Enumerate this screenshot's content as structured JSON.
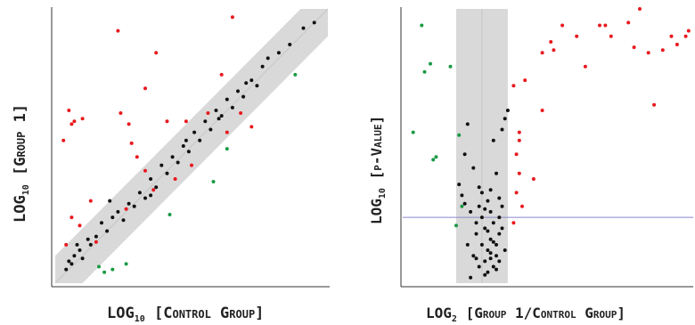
{
  "colors": {
    "red": "#e8191e",
    "green": "#1a9a45",
    "black": "#111111",
    "band": "#d9d9d9",
    "hline": "#8888cc"
  },
  "chart_data": [
    {
      "type": "scatter",
      "xlabel_main": "LOG",
      "xlabel_sub": "10",
      "xlabel_rest": " [Control Group]",
      "ylabel_main": "LOG",
      "ylabel_sub": "10",
      "ylabel_rest": " [Group 1]",
      "xlim": [
        0,
        1
      ],
      "ylim": [
        0,
        1
      ],
      "band_halfwidth": 0.1,
      "series": [
        {
          "color_key": "black",
          "points": [
            [
              0.04,
              0.05
            ],
            [
              0.05,
              0.08
            ],
            [
              0.06,
              0.07
            ],
            [
              0.07,
              0.1
            ],
            [
              0.09,
              0.12
            ],
            [
              0.1,
              0.09
            ],
            [
              0.12,
              0.16
            ],
            [
              0.13,
              0.14
            ],
            [
              0.15,
              0.17
            ],
            [
              0.17,
              0.22
            ],
            [
              0.19,
              0.19
            ],
            [
              0.21,
              0.24
            ],
            [
              0.23,
              0.26
            ],
            [
              0.25,
              0.23
            ],
            [
              0.27,
              0.29
            ],
            [
              0.29,
              0.28
            ],
            [
              0.31,
              0.33
            ],
            [
              0.33,
              0.31
            ],
            [
              0.35,
              0.38
            ],
            [
              0.37,
              0.35
            ],
            [
              0.39,
              0.43
            ],
            [
              0.41,
              0.4
            ],
            [
              0.43,
              0.46
            ],
            [
              0.45,
              0.44
            ],
            [
              0.47,
              0.5
            ],
            [
              0.49,
              0.48
            ],
            [
              0.51,
              0.55
            ],
            [
              0.53,
              0.52
            ],
            [
              0.55,
              0.59
            ],
            [
              0.57,
              0.56
            ],
            [
              0.59,
              0.63
            ],
            [
              0.61,
              0.61
            ],
            [
              0.63,
              0.67
            ],
            [
              0.65,
              0.64
            ],
            [
              0.67,
              0.7
            ],
            [
              0.69,
              0.68
            ],
            [
              0.72,
              0.74
            ],
            [
              0.74,
              0.72
            ],
            [
              0.78,
              0.82
            ],
            [
              0.82,
              0.84
            ],
            [
              0.86,
              0.87
            ],
            [
              0.91,
              0.93
            ],
            [
              0.95,
              0.95
            ],
            [
              0.08,
              0.14
            ],
            [
              0.2,
              0.3
            ],
            [
              0.35,
              0.32
            ],
            [
              0.48,
              0.52
            ],
            [
              0.6,
              0.6
            ],
            [
              0.7,
              0.73
            ],
            [
              0.76,
              0.79
            ]
          ]
        },
        {
          "color_key": "red",
          "points": [
            [
              0.03,
              0.52
            ],
            [
              0.05,
              0.63
            ],
            [
              0.06,
              0.58
            ],
            [
              0.07,
              0.59
            ],
            [
              0.1,
              0.6
            ],
            [
              0.06,
              0.24
            ],
            [
              0.09,
              0.21
            ],
            [
              0.04,
              0.14
            ],
            [
              0.13,
              0.3
            ],
            [
              0.15,
              0.15
            ],
            [
              0.23,
              0.92
            ],
            [
              0.24,
              0.62
            ],
            [
              0.27,
              0.58
            ],
            [
              0.28,
              0.51
            ],
            [
              0.3,
              0.46
            ],
            [
              0.33,
              0.41
            ],
            [
              0.33,
              0.71
            ],
            [
              0.37,
              0.84
            ],
            [
              0.41,
              0.59
            ],
            [
              0.48,
              0.59
            ],
            [
              0.56,
              0.62
            ],
            [
              0.61,
              0.76
            ],
            [
              0.65,
              0.97
            ],
            [
              0.68,
              0.62
            ],
            [
              0.72,
              0.57
            ],
            [
              0.63,
              0.55
            ],
            [
              0.5,
              0.43
            ],
            [
              0.44,
              0.38
            ],
            [
              0.36,
              0.34
            ],
            [
              0.26,
              0.27
            ]
          ]
        },
        {
          "color_key": "green",
          "points": [
            [
              0.16,
              0.06
            ],
            [
              0.21,
              0.05
            ],
            [
              0.26,
              0.07
            ],
            [
              0.42,
              0.25
            ],
            [
              0.58,
              0.37
            ],
            [
              0.63,
              0.49
            ],
            [
              0.88,
              0.76
            ],
            [
              0.18,
              0.04
            ]
          ]
        }
      ]
    },
    {
      "type": "scatter",
      "xlabel_main": "LOG",
      "xlabel_sub": "2",
      "xlabel_rest": " [Group 1/Control Group]",
      "ylabel_main": "LOG",
      "ylabel_sub": "10",
      "ylabel_rest": " [p-Value]",
      "xlim": [
        0,
        1
      ],
      "ylim": [
        0,
        1
      ],
      "band": [
        0.18,
        0.36
      ],
      "band_mid": 0.27,
      "hline": 0.24,
      "series": [
        {
          "color_key": "black",
          "points": [
            [
              0.19,
              0.36
            ],
            [
              0.2,
              0.32
            ],
            [
              0.21,
              0.29
            ],
            [
              0.22,
              0.58
            ],
            [
              0.23,
              0.02
            ],
            [
              0.24,
              0.1
            ],
            [
              0.25,
              0.18
            ],
            [
              0.25,
              0.22
            ],
            [
              0.26,
              0.06
            ],
            [
              0.26,
              0.28
            ],
            [
              0.27,
              0.14
            ],
            [
              0.27,
              0.24
            ],
            [
              0.28,
              0.08
            ],
            [
              0.28,
              0.2
            ],
            [
              0.29,
              0.04
            ],
            [
              0.29,
              0.12
            ],
            [
              0.29,
              0.3
            ],
            [
              0.3,
              0.16
            ],
            [
              0.3,
              0.26
            ],
            [
              0.3,
              0.34
            ],
            [
              0.31,
              0.06
            ],
            [
              0.31,
              0.22
            ],
            [
              0.31,
              0.52
            ],
            [
              0.32,
              0.1
            ],
            [
              0.32,
              0.14
            ],
            [
              0.32,
              0.4
            ],
            [
              0.33,
              0.18
            ],
            [
              0.33,
              0.08
            ],
            [
              0.34,
              0.56
            ],
            [
              0.34,
              0.2
            ],
            [
              0.34,
              0.28
            ],
            [
              0.35,
              0.12
            ],
            [
              0.35,
              0.6
            ],
            [
              0.24,
              0.42
            ],
            [
              0.26,
              0.35
            ],
            [
              0.28,
              0.03
            ],
            [
              0.3,
              0.09
            ],
            [
              0.32,
              0.05
            ],
            [
              0.22,
              0.14
            ],
            [
              0.33,
              0.31
            ],
            [
              0.23,
              0.26
            ],
            [
              0.27,
              0.33
            ],
            [
              0.29,
              0.19
            ],
            [
              0.31,
              0.15
            ],
            [
              0.25,
              0.09
            ],
            [
              0.36,
              0.63
            ],
            [
              0.21,
              0.47
            ],
            [
              0.33,
              0.24
            ],
            [
              0.28,
              0.27
            ],
            [
              0.3,
              0.11
            ]
          ]
        },
        {
          "color_key": "red",
          "points": [
            [
              0.38,
              0.72
            ],
            [
              0.4,
              0.55
            ],
            [
              0.39,
              0.47
            ],
            [
              0.4,
              0.4
            ],
            [
              0.39,
              0.33
            ],
            [
              0.41,
              0.28
            ],
            [
              0.38,
              0.22
            ],
            [
              0.42,
              0.74
            ],
            [
              0.45,
              0.38
            ],
            [
              0.48,
              0.84
            ],
            [
              0.48,
              0.63
            ],
            [
              0.51,
              0.88
            ],
            [
              0.55,
              0.94
            ],
            [
              0.6,
              0.9
            ],
            [
              0.63,
              0.79
            ],
            [
              0.68,
              0.94
            ],
            [
              0.72,
              0.9
            ],
            [
              0.78,
              0.95
            ],
            [
              0.8,
              0.86
            ],
            [
              0.82,
              1.0
            ],
            [
              0.85,
              0.84
            ],
            [
              0.87,
              0.65
            ],
            [
              0.9,
              0.85
            ],
            [
              0.95,
              0.87
            ],
            [
              0.98,
              0.9
            ],
            [
              0.93,
              0.9
            ],
            [
              0.7,
              0.94
            ],
            [
              0.99,
              0.92
            ],
            [
              0.52,
              0.85
            ],
            [
              0.4,
              0.52
            ]
          ]
        },
        {
          "color_key": "green",
          "points": [
            [
              0.03,
              0.55
            ],
            [
              0.06,
              0.94
            ],
            [
              0.09,
              0.8
            ],
            [
              0.1,
              0.45
            ],
            [
              0.11,
              0.46
            ],
            [
              0.16,
              0.79
            ],
            [
              0.19,
              0.54
            ],
            [
              0.2,
              0.28
            ],
            [
              0.18,
              0.21
            ],
            [
              0.07,
              0.77
            ]
          ]
        }
      ]
    }
  ]
}
